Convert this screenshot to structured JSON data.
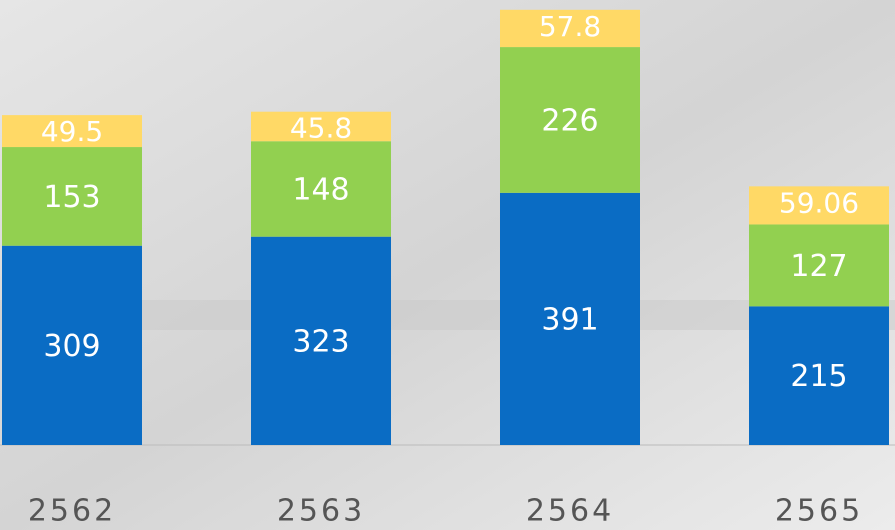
{
  "chart_data": {
    "type": "bar",
    "stacked": true,
    "categories": [
      "2562",
      "2563",
      "2564",
      "2565"
    ],
    "series": [
      {
        "color": "#0a6cc4",
        "values": [
          309,
          323,
          391,
          215
        ]
      },
      {
        "color": "#92d050",
        "values": [
          153,
          148,
          226,
          127
        ]
      },
      {
        "color": "#ffd966",
        "values": [
          49.5,
          45.8,
          57.8,
          59.06
        ]
      }
    ],
    "ylim": [
      0,
      690
    ]
  }
}
